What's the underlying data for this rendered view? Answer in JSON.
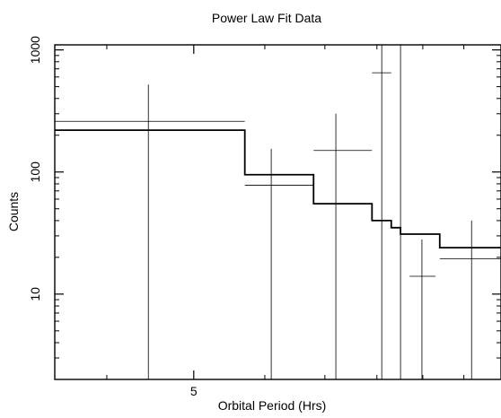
{
  "chart_data": {
    "type": "scatter",
    "title": "Power Law Fit Data",
    "xlabel": "Orbital Period (Hrs)",
    "ylabel": "Counts",
    "x_scale": "log",
    "y_scale": "log",
    "xlim": [
      3.5,
      11.0
    ],
    "ylim": [
      2,
      1100
    ],
    "x_ticks": [
      {
        "value": 5,
        "label": "5"
      }
    ],
    "y_ticks": [
      {
        "value": 10,
        "label": "10"
      },
      {
        "value": 100,
        "label": "100"
      },
      {
        "value": 1000,
        "label": "1000"
      }
    ],
    "grid": false,
    "legend": false,
    "series": [
      {
        "kind": "data_points_with_errors",
        "points": [
          {
            "x": 4.45,
            "y": 260,
            "x_low": 3.5,
            "x_high": 5.7,
            "y_low": 2.0,
            "y_high": 520
          },
          {
            "x": 6.1,
            "y": 78,
            "x_low": 5.7,
            "x_high": 6.8,
            "y_low": 2.0,
            "y_high": 155
          },
          {
            "x": 7.2,
            "y": 150,
            "x_low": 6.8,
            "x_high": 7.9,
            "y_low": 2.0,
            "y_high": 300
          },
          {
            "x": 8.1,
            "y": 650,
            "x_low": 7.9,
            "x_high": 8.3,
            "y_low": 2.0,
            "y_high": 1100
          },
          {
            "x": 8.5,
            "y": 1100,
            "x_low": 8.4,
            "x_high": 8.6,
            "y_low": 2.0,
            "y_high": 1100
          },
          {
            "x": 8.98,
            "y": 14,
            "x_low": 8.7,
            "x_high": 9.3,
            "y_low": 2.0,
            "y_high": 28
          },
          {
            "x": 10.2,
            "y": 19.5,
            "x_low": 9.4,
            "x_high": 11.0,
            "y_low": 2.0,
            "y_high": 40
          }
        ]
      },
      {
        "kind": "model_step",
        "bins": [
          {
            "x_start": 3.5,
            "x_end": 5.7,
            "y": 220
          },
          {
            "x_start": 5.7,
            "x_end": 6.8,
            "y": 95
          },
          {
            "x_start": 6.8,
            "x_end": 7.9,
            "y": 55
          },
          {
            "x_start": 7.9,
            "x_end": 8.3,
            "y": 40
          },
          {
            "x_start": 8.3,
            "x_end": 8.5,
            "y": 35
          },
          {
            "x_start": 8.5,
            "x_end": 9.4,
            "y": 31
          },
          {
            "x_start": 9.4,
            "x_end": 11.0,
            "y": 24
          }
        ]
      }
    ]
  }
}
